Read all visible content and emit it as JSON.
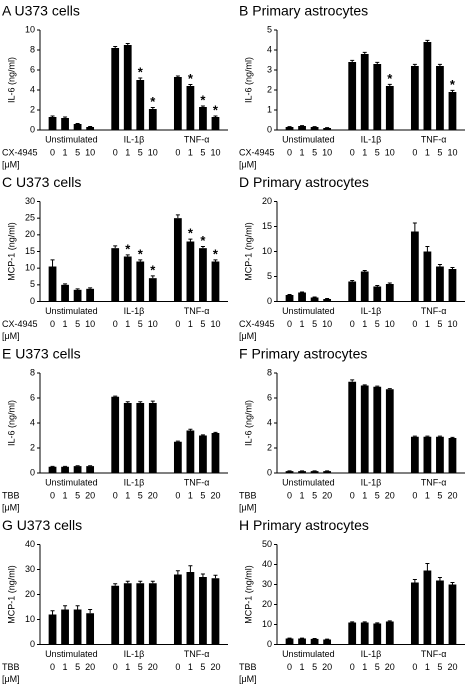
{
  "chart_data": [
    {
      "type": "bar",
      "title": "A U373 cells",
      "ylabel": "IL-6 (ng/ml)",
      "groups": [
        "Unstimulated",
        "IL-1β",
        "TNF-α"
      ],
      "categories": [
        "0",
        "1",
        "5",
        "10",
        "0",
        "1",
        "5",
        "10",
        "0",
        "1",
        "5",
        "10"
      ],
      "treatment_label": "CX-4945",
      "unit_label": "[μM]",
      "color": "#000000",
      "values": [
        1.3,
        1.2,
        0.6,
        0.3,
        8.2,
        8.5,
        5.0,
        2.1,
        5.3,
        4.4,
        2.3,
        1.3
      ],
      "errors": [
        0.1,
        0.1,
        0.05,
        0.05,
        0.15,
        0.15,
        0.2,
        0.15,
        0.1,
        0.15,
        0.1,
        0.1
      ],
      "significance": [
        null,
        null,
        null,
        null,
        null,
        null,
        "*",
        "*",
        null,
        "*",
        "*",
        "*"
      ],
      "ylim": [
        0,
        10
      ],
      "yticks": [
        0,
        2,
        4,
        6,
        8,
        10
      ]
    },
    {
      "type": "bar",
      "title": "B Primary astrocytes",
      "ylabel": "IL-6 (ng/ml)",
      "groups": [
        "Unstimulated",
        "IL-1β",
        "TNF-α"
      ],
      "categories": [
        "0",
        "1",
        "5",
        "10",
        "0",
        "1",
        "5",
        "10",
        "0",
        "1",
        "5",
        "10"
      ],
      "treatment_label": "CX-4945",
      "unit_label": "[μM]",
      "color": "#000000",
      "values": [
        0.15,
        0.2,
        0.15,
        0.1,
        3.4,
        3.8,
        3.3,
        2.2,
        3.2,
        4.4,
        3.2,
        1.9
      ],
      "errors": [
        0.02,
        0.02,
        0.02,
        0.02,
        0.08,
        0.08,
        0.08,
        0.08,
        0.08,
        0.08,
        0.08,
        0.08
      ],
      "significance": [
        null,
        null,
        null,
        null,
        null,
        null,
        null,
        "*",
        null,
        null,
        null,
        "*"
      ],
      "ylim": [
        0,
        5
      ],
      "yticks": [
        0,
        1,
        2,
        3,
        4,
        5
      ]
    },
    {
      "type": "bar",
      "title": "C U373 cells",
      "ylabel": "MCP-1 (ng/ml)",
      "groups": [
        "Unstimulated",
        "IL-1β",
        "TNF-α"
      ],
      "categories": [
        "0",
        "1",
        "5",
        "10",
        "0",
        "1",
        "5",
        "10",
        "0",
        "1",
        "5",
        "10"
      ],
      "treatment_label": "CX-4945",
      "unit_label": "[μM]",
      "color": "#000000",
      "values": [
        10.5,
        5,
        3.5,
        3.8,
        16,
        13.5,
        12,
        7,
        25,
        18,
        16,
        12
      ],
      "errors": [
        2,
        0.3,
        0.3,
        0.3,
        0.7,
        0.5,
        0.5,
        0.7,
        1,
        0.7,
        0.5,
        0.5
      ],
      "significance": [
        null,
        null,
        null,
        null,
        null,
        "*",
        "*",
        "*",
        null,
        "*",
        "*",
        "*"
      ],
      "ylim": [
        0,
        30
      ],
      "yticks": [
        0,
        5,
        10,
        15,
        20,
        25,
        30
      ]
    },
    {
      "type": "bar",
      "title": "D Primary astrocytes",
      "ylabel": "MCP-1 (ng/ml)",
      "groups": [
        "Unstimulated",
        "IL-1β",
        "TNF-α"
      ],
      "categories": [
        "0",
        "1",
        "5",
        "10",
        "0",
        "1",
        "5",
        "10",
        "0",
        "1",
        "5",
        "10"
      ],
      "treatment_label": "CX-4945",
      "unit_label": "[μM]",
      "color": "#000000",
      "values": [
        1.3,
        1.8,
        0.8,
        0.5,
        4,
        6,
        3,
        3.5,
        14,
        10,
        7,
        6.5
      ],
      "errors": [
        0.1,
        0.1,
        0.1,
        0.1,
        0.2,
        0.2,
        0.2,
        0.2,
        1.7,
        1,
        0.4,
        0.3
      ],
      "significance": [
        null,
        null,
        null,
        null,
        null,
        null,
        null,
        null,
        null,
        null,
        null,
        null
      ],
      "ylim": [
        0,
        20
      ],
      "yticks": [
        0,
        5,
        10,
        15,
        20
      ]
    },
    {
      "type": "bar",
      "title": "E U373 cells",
      "ylabel": "IL-6 (ng/ml)",
      "groups": [
        "Unstimulated",
        "IL-1β",
        "TNF-α"
      ],
      "categories": [
        "0",
        "1",
        "5",
        "20",
        "0",
        "1",
        "5",
        "20",
        "0",
        "1",
        "5",
        "20"
      ],
      "treatment_label": "TBB",
      "unit_label": "[μM]",
      "color": "#000000",
      "values": [
        0.5,
        0.5,
        0.55,
        0.55,
        6.1,
        5.6,
        5.6,
        5.6,
        2.5,
        3.4,
        3.0,
        3.2
      ],
      "errors": [
        0.03,
        0.03,
        0.03,
        0.03,
        0.05,
        0.1,
        0.1,
        0.15,
        0.05,
        0.1,
        0.05,
        0.05
      ],
      "significance": [
        null,
        null,
        null,
        null,
        null,
        null,
        null,
        null,
        null,
        null,
        null,
        null
      ],
      "ylim": [
        0,
        8
      ],
      "yticks": [
        0,
        2,
        4,
        6,
        8
      ]
    },
    {
      "type": "bar",
      "title": "F Primary astrocytes",
      "ylabel": "IL-6 (ng/ml)",
      "groups": [
        "Unstimulated",
        "IL-1β",
        "TNF-α"
      ],
      "categories": [
        "0",
        "1",
        "5",
        "20",
        "0",
        "1",
        "5",
        "20",
        "0",
        "1",
        "5",
        "20"
      ],
      "treatment_label": "TBB",
      "unit_label": "[μM]",
      "color": "#000000",
      "values": [
        0.15,
        0.15,
        0.15,
        0.15,
        7.3,
        7.0,
        6.9,
        6.7,
        2.9,
        2.9,
        2.9,
        2.8
      ],
      "errors": [
        0.02,
        0.02,
        0.02,
        0.02,
        0.15,
        0.05,
        0.05,
        0.05,
        0.05,
        0.05,
        0.05,
        0.05
      ],
      "significance": [
        null,
        null,
        null,
        null,
        null,
        null,
        null,
        null,
        null,
        null,
        null,
        null
      ],
      "ylim": [
        0,
        8
      ],
      "yticks": [
        0,
        2,
        4,
        6,
        8
      ]
    },
    {
      "type": "bar",
      "title": "G U373 cells",
      "ylabel": "MCP-1 (ng/ml)",
      "groups": [
        "Unstimulated",
        "IL-1β",
        "TNF-α"
      ],
      "categories": [
        "0",
        "1",
        "5",
        "20",
        "0",
        "1",
        "5",
        "20",
        "0",
        "1",
        "5",
        "20"
      ],
      "treatment_label": "TBB",
      "unit_label": "[μM]",
      "color": "#000000",
      "values": [
        12,
        14,
        14,
        12.5,
        23.5,
        24.5,
        24.5,
        24.5,
        28,
        29,
        27,
        26.5
      ],
      "errors": [
        1.5,
        1.5,
        1.5,
        1.5,
        0.8,
        0.8,
        0.8,
        0.8,
        1.5,
        2.5,
        1.2,
        1.2
      ],
      "significance": [
        null,
        null,
        null,
        null,
        null,
        null,
        null,
        null,
        null,
        null,
        null,
        null
      ],
      "ylim": [
        0,
        40
      ],
      "yticks": [
        0,
        10,
        20,
        30,
        40
      ]
    },
    {
      "type": "bar",
      "title": "H Primary astrocytes",
      "ylabel": "MCP-1 (ng/ml)",
      "groups": [
        "Unstimulated",
        "IL-1β",
        "TNF-α"
      ],
      "categories": [
        "0",
        "1",
        "5",
        "20",
        "0",
        "1",
        "5",
        "20",
        "0",
        "1",
        "5",
        "20"
      ],
      "treatment_label": "TBB",
      "unit_label": "[μM]",
      "color": "#000000",
      "values": [
        3,
        3,
        2.8,
        2.5,
        11,
        11,
        10.5,
        11.5,
        31,
        37,
        32,
        30
      ],
      "errors": [
        0.2,
        0.2,
        0.2,
        0.2,
        0.3,
        0.3,
        0.3,
        0.3,
        1.5,
        3.5,
        1.5,
        1
      ],
      "significance": [
        null,
        null,
        null,
        null,
        null,
        null,
        null,
        null,
        null,
        null,
        null,
        null
      ],
      "ylim": [
        0,
        50
      ],
      "yticks": [
        0,
        10,
        20,
        30,
        40,
        50
      ]
    }
  ]
}
